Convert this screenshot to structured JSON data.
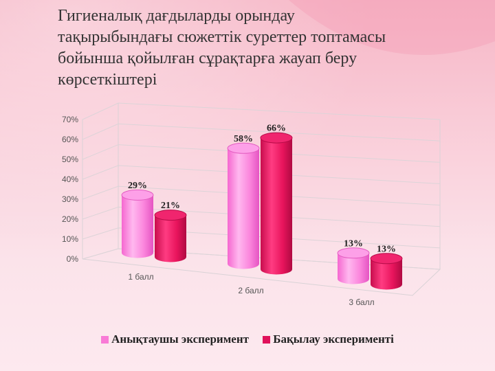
{
  "slide": {
    "title_lines": [
      "Гигиеналық дағдыларды орындау",
      "тақырыбындағы сюжеттік суреттер топтамасы",
      "бойынша қойылған сұрақтарға жауап беру",
      "көрсеткіштері"
    ]
  },
  "chart_data": {
    "type": "bar",
    "categories": [
      "1 балл",
      "2 балл",
      "3 балл"
    ],
    "series": [
      {
        "name": "Анықтаушы эксперимент",
        "values": [
          29,
          58,
          13
        ],
        "labels": [
          "29%",
          "58%",
          "13%"
        ],
        "color": "#f97ad6"
      },
      {
        "name": "Бақылау эксперименті",
        "values": [
          21,
          66,
          13
        ],
        "labels": [
          "21%",
          "66%",
          "13%"
        ],
        "color": "#e0105a"
      }
    ],
    "ylim": [
      0,
      70
    ],
    "yticks": [
      "0%",
      "10%",
      "20%",
      "30%",
      "40%",
      "50%",
      "60%",
      "70%"
    ],
    "grid": true,
    "legend_position": "bottom",
    "style": "3d-cylinder"
  }
}
